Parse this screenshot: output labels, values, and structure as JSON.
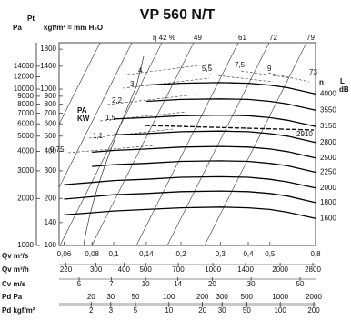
{
  "chart_data": {
    "type": "line",
    "title": "VP 560 N/T",
    "y_label_top": "Pt",
    "y_label": "Pa",
    "y2_label": "kgf/m² = mm H₂O",
    "noise_label": "L",
    "noise_unit": "dB",
    "speed_label": "n",
    "x_label": "Qv m³/s",
    "log_x": true,
    "log_y": true,
    "grid": false,
    "x": [
      0.06,
      0.08,
      0.1,
      0.14,
      0.2,
      0.3,
      0.4,
      0.5,
      0.6,
      0.8
    ],
    "xlim": [
      0.057,
      0.8
    ],
    "xticks": [
      {
        "value": 0.06,
        "label": "0,06"
      },
      {
        "value": 0.08,
        "label": "0,08"
      },
      {
        "value": 0.1,
        "label": "0,1"
      },
      {
        "value": 0.14,
        "label": "0,14"
      },
      {
        "value": 0.2,
        "label": "0,2"
      },
      {
        "value": 0.3,
        "label": "0,3"
      },
      {
        "value": 0.4,
        "label": "0,4"
      },
      {
        "value": 0.5,
        "label": "0,5"
      },
      {
        "value": 0.8,
        "label": "0,8"
      }
    ],
    "ylim": [
      1000,
      19800
    ],
    "yticks": [
      1000,
      2000,
      3000,
      4000,
      5000,
      6000,
      7000,
      8000,
      9000,
      10000,
      12000,
      14000
    ],
    "y2lim": [
      100,
      1980
    ],
    "y2ticks": [
      100,
      140,
      200,
      300,
      400,
      500,
      600,
      700,
      800,
      900,
      1000,
      1400,
      1800
    ],
    "x_scales": [
      {
        "label": "Qv m³/h",
        "lim": [
          205,
          2880
        ],
        "ticks": [
          220,
          300,
          400,
          500,
          700,
          1000,
          1400,
          2000,
          2800
        ]
      },
      {
        "label": "Cv m/s",
        "lim": [
          4.06,
          58.7
        ],
        "ticks": [
          5,
          7,
          10,
          14,
          20,
          30,
          50
        ]
      },
      {
        "label": "Pd Pa",
        "lim": [
          10.3,
          2076
        ],
        "ticks": [
          20,
          30,
          50,
          100,
          200,
          300,
          500,
          1000,
          2000
        ]
      },
      {
        "label": "Pd kgf/m²",
        "lim": [
          1.03,
          207.6
        ],
        "ticks": [
          2,
          3,
          5,
          10,
          20,
          30,
          50,
          100,
          200
        ]
      }
    ],
    "series": [
      {
        "name": "4000",
        "color": "#000000",
        "values": [
          null,
          null,
          null,
          10600,
          10900,
          11000,
          10900,
          10600,
          10200,
          9300
        ]
      },
      {
        "name": "3550",
        "color": "#000000",
        "values": [
          null,
          null,
          null,
          8350,
          8590,
          8660,
          8590,
          8350,
          8030,
          7330
        ]
      },
      {
        "name": "3150",
        "color": "#000000",
        "values": [
          null,
          null,
          6450,
          6570,
          6760,
          6820,
          6760,
          6570,
          6320,
          5770
        ]
      },
      {
        "name": "2800",
        "color": "#000000",
        "values": [
          null,
          null,
          5100,
          5190,
          5340,
          5390,
          5340,
          5190,
          5000,
          4560
        ]
      },
      {
        "name": "2500",
        "color": "#000000",
        "values": [
          null,
          3950,
          4050,
          4140,
          4260,
          4300,
          4260,
          4140,
          3980,
          3630
        ]
      },
      {
        "name": "2250",
        "color": "#000000",
        "values": [
          null,
          3200,
          3290,
          3350,
          3450,
          3480,
          3450,
          3350,
          3230,
          2940
        ]
      },
      {
        "name": "2000",
        "color": "#000000",
        "values": [
          2450,
          2530,
          2600,
          2650,
          2730,
          2750,
          2730,
          2650,
          2550,
          2330
        ]
      },
      {
        "name": "1800",
        "color": "#000000",
        "values": [
          1980,
          2050,
          2110,
          2150,
          2210,
          2230,
          2210,
          2150,
          2070,
          1880
        ]
      },
      {
        "name": "1600",
        "color": "#000000",
        "values": [
          1570,
          1620,
          1660,
          1700,
          1740,
          1760,
          1740,
          1700,
          1630,
          1490
        ]
      }
    ],
    "annotations": [
      "η 42 %",
      "49",
      "61",
      "72",
      "79",
      "4",
      "3",
      "2,2",
      "1,5",
      "1,1",
      "0,75",
      "5,5",
      "7,5",
      "9",
      "73",
      "2910",
      "PA",
      "KW"
    ]
  }
}
